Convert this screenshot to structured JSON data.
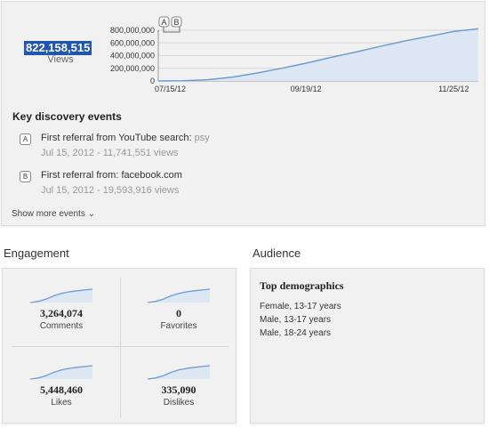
{
  "views": {
    "total": "822,158,515",
    "label": "Views"
  },
  "chart_data": {
    "type": "area",
    "x": [
      "07/15/12",
      "07/26/12",
      "08/06/12",
      "08/17/12",
      "08/28/12",
      "09/08/12",
      "09/19/12",
      "09/30/12",
      "10/11/12",
      "10/22/12",
      "11/02/12",
      "11/14/12",
      "11/25/12",
      "11/30/12"
    ],
    "values": [
      0,
      4000000,
      20000000,
      60000000,
      125000000,
      200000000,
      280000000,
      370000000,
      455000000,
      545000000,
      630000000,
      705000000,
      780000000,
      822158515
    ],
    "ylim": [
      0,
      800000000
    ],
    "yticks": [
      "800,000,000",
      "600,000,000",
      "400,000,000",
      "200,000,000",
      "0"
    ],
    "xticks": [
      "07/15/12",
      "09/19/12",
      "11/25/12"
    ],
    "markers": [
      "A",
      "B"
    ],
    "grid": true,
    "line_color": "#6f9bd1",
    "fill_color": "#dde7f3"
  },
  "discovery": {
    "heading": "Key discovery events",
    "events": [
      {
        "badge": "A",
        "title": "First referral from YouTube search:",
        "keyword": "psy",
        "date": "Jul 15, 2012 - 11,741,551 views"
      },
      {
        "badge": "B",
        "title": "First referral from: facebook.com",
        "keyword": "",
        "date": "Jul 15, 2012 - 19,593,916 views"
      }
    ],
    "show_more": "Show more events"
  },
  "engagement": {
    "title": "Engagement",
    "metrics": [
      {
        "value": "3,264,074",
        "label": "Comments"
      },
      {
        "value": "0",
        "label": "Favorites"
      },
      {
        "value": "5,448,460",
        "label": "Likes"
      },
      {
        "value": "335,090",
        "label": "Dislikes"
      }
    ]
  },
  "audience": {
    "title": "Audience",
    "heading": "Top demographics",
    "items": [
      "Female, 13-17 years",
      "Male, 13-17 years",
      "Male, 18-24 years"
    ]
  },
  "colors": {
    "accent": "#2055b0",
    "line": "#6f9bd1",
    "fill": "#dde7f3",
    "panel": "#f1f1f1"
  }
}
